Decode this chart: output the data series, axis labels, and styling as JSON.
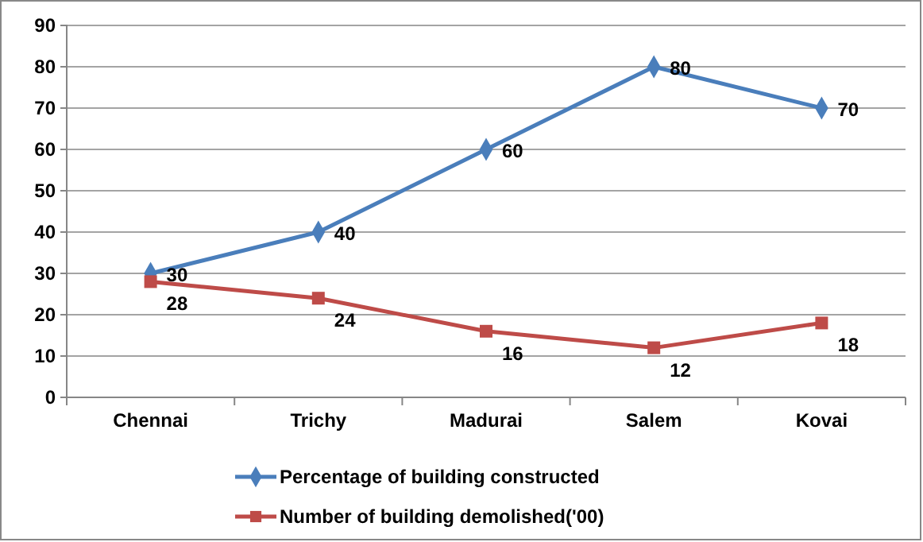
{
  "chart_data": {
    "type": "line",
    "categories": [
      "Chennai",
      "Trichy",
      "Madurai",
      "Salem",
      "Kovai"
    ],
    "series": [
      {
        "name": "Percentage of building constructed",
        "color": "#4a7ebb",
        "marker": "diamond",
        "values": [
          30,
          40,
          60,
          80,
          70
        ]
      },
      {
        "name": "Number of building demolished('00)",
        "color": "#be4b48",
        "marker": "square",
        "values": [
          28,
          24,
          16,
          12,
          18
        ]
      }
    ],
    "ylim": [
      0,
      90
    ],
    "yticks": [
      0,
      10,
      20,
      30,
      40,
      50,
      60,
      70,
      80,
      90
    ],
    "grid": "y",
    "legend": "bottom",
    "data_labels": true
  }
}
